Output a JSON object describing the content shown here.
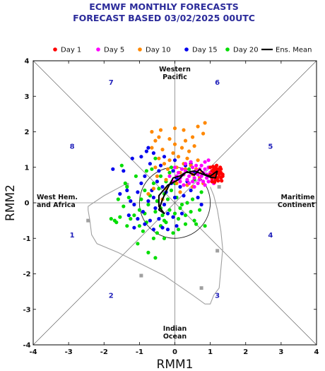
{
  "title_line1": "ECMWF MONTHLY FORECASTS",
  "title_line2": "FORECAST  BASED 03/02/2025 00UTC",
  "chart_data": {
    "type": "scatter",
    "xlabel": "RMM1",
    "ylabel": "RMM2",
    "xlim": [
      -4,
      4
    ],
    "ylim": [
      -4,
      4
    ],
    "xticks": [
      "-4",
      "-3",
      "-2",
      "-1",
      "0",
      "1",
      "2",
      "3",
      "4"
    ],
    "yticks": [
      "-4",
      "-3",
      "-2",
      "-1",
      "0",
      "1",
      "2",
      "3",
      "4"
    ],
    "legend_position": "top",
    "legend": [
      {
        "label": "Day 1",
        "color": "#ff0000",
        "kind": "dot"
      },
      {
        "label": "Day 5",
        "color": "#ff00ff",
        "kind": "dot"
      },
      {
        "label": "Day 10",
        "color": "#ff8800",
        "kind": "dot"
      },
      {
        "label": "Day 15",
        "color": "#0000ee",
        "kind": "dot"
      },
      {
        "label": "Day 20",
        "color": "#00dd00",
        "kind": "dot"
      },
      {
        "label": "Ens. Mean",
        "color": "#000000",
        "kind": "line"
      }
    ],
    "phase_labels": [
      {
        "text": "1",
        "x": -2.9,
        "y": -0.9
      },
      {
        "text": "2",
        "x": -1.8,
        "y": -2.6
      },
      {
        "text": "3",
        "x": 1.2,
        "y": -2.6
      },
      {
        "text": "4",
        "x": 2.7,
        "y": -0.9
      },
      {
        "text": "5",
        "x": 2.7,
        "y": 1.6
      },
      {
        "text": "6",
        "x": 1.2,
        "y": 3.4
      },
      {
        "text": "7",
        "x": -1.8,
        "y": 3.4
      },
      {
        "text": "8",
        "x": -2.9,
        "y": 1.6
      }
    ],
    "region_labels": [
      {
        "lines": [
          "Western",
          "Pacific"
        ],
        "x": 0.0,
        "y": 3.7,
        "anchor": "middle"
      },
      {
        "lines": [
          "Indian",
          "Ocean"
        ],
        "x": 0.0,
        "y": -3.6,
        "anchor": "middle"
      },
      {
        "lines": [
          "West Hem.",
          "and Africa"
        ],
        "x": -3.9,
        "y": 0.1,
        "anchor": "start"
      },
      {
        "lines": [
          "Maritime",
          "Continent"
        ],
        "x": 3.95,
        "y": 0.1,
        "anchor": "end"
      }
    ],
    "unit_circle_radius": 1,
    "ensemble_mean": {
      "x": [
        1.2,
        1.0,
        0.85,
        0.7,
        0.55,
        0.35,
        0.15,
        -0.05,
        -0.2,
        -0.35,
        -0.45,
        -0.3,
        -0.45,
        -0.45,
        -0.2,
        0.1,
        0.3,
        0.55,
        0.8,
        1.0,
        1.15,
        1.2
      ],
      "y": [
        0.9,
        0.75,
        0.8,
        0.95,
        0.78,
        0.88,
        0.76,
        0.7,
        0.42,
        0.1,
        -0.2,
        -0.3,
        -0.1,
        0.2,
        0.5,
        0.65,
        0.85,
        0.9,
        0.8,
        0.72,
        0.7,
        0.9
      ]
    },
    "envelope": {
      "x": [
        1.0,
        1.1,
        1.2,
        1.25,
        1.3,
        1.35,
        1.25,
        1.1,
        1.0,
        0.85,
        0.5,
        -0.3,
        -0.8,
        -1.3,
        -1.6,
        -2.2,
        -2.35,
        -2.4,
        -2.45,
        -2.45,
        -2.0,
        -1.35,
        -1.3
      ],
      "y": [
        0.45,
        0.2,
        -0.2,
        -0.5,
        -0.8,
        -1.3,
        -2.4,
        -2.6,
        -2.85,
        -2.85,
        -2.6,
        -2.05,
        -1.8,
        -1.55,
        -1.4,
        -1.15,
        -0.9,
        -0.5,
        -0.2,
        -0.1,
        0.2,
        0.55,
        0.55
      ]
    },
    "envelope_markers": {
      "x": [
        1.25,
        1.2,
        0.75,
        -0.95,
        -2.45,
        -1.35
      ],
      "y": [
        0.45,
        -1.35,
        -2.4,
        -2.05,
        -0.5,
        0.5
      ]
    },
    "series": [
      {
        "name": "Day 20",
        "color": "#00dd00",
        "points": [
          [
            -1.5,
            1.05
          ],
          [
            -1.4,
            0.55
          ],
          [
            -1.35,
            0.45
          ],
          [
            -1.3,
            0.15
          ],
          [
            -1.25,
            -0.45
          ],
          [
            -1.15,
            -0.35
          ],
          [
            -1.0,
            -0.2
          ],
          [
            -0.95,
            0.1
          ],
          [
            -0.85,
            0.35
          ],
          [
            -0.75,
            -0.05
          ],
          [
            -0.7,
            0.2
          ],
          [
            -0.6,
            0.55
          ],
          [
            -0.55,
            -0.25
          ],
          [
            -0.5,
            0.05
          ],
          [
            -0.45,
            0.4
          ],
          [
            -0.4,
            -0.15
          ],
          [
            -0.35,
            -0.35
          ],
          [
            -0.3,
            0.25
          ],
          [
            -0.25,
            -0.55
          ],
          [
            -0.2,
            0.1
          ],
          [
            -0.15,
            -0.2
          ],
          [
            -0.1,
            0.35
          ],
          [
            0.0,
            -0.3
          ],
          [
            0.05,
            0.15
          ],
          [
            0.1,
            -0.45
          ],
          [
            0.15,
            -0.15
          ],
          [
            0.2,
            -0.05
          ],
          [
            0.3,
            -0.35
          ],
          [
            0.35,
            0.0
          ],
          [
            0.45,
            -0.25
          ],
          [
            0.5,
            0.1
          ],
          [
            0.55,
            -0.5
          ],
          [
            0.6,
            -0.6
          ],
          [
            0.85,
            -0.65
          ],
          [
            -1.8,
            -0.45
          ],
          [
            -1.7,
            -0.5
          ],
          [
            -1.6,
            0.1
          ],
          [
            -1.55,
            -0.4
          ],
          [
            -1.65,
            -0.55
          ],
          [
            -1.0,
            -0.65
          ],
          [
            -0.9,
            -0.8
          ],
          [
            -0.8,
            -0.55
          ],
          [
            -0.6,
            -1.0
          ],
          [
            -0.5,
            -0.85
          ],
          [
            -0.4,
            -0.65
          ],
          [
            -0.3,
            -0.5
          ],
          [
            -0.05,
            -0.85
          ],
          [
            0.1,
            -0.75
          ],
          [
            0.3,
            -0.6
          ],
          [
            -1.05,
            -1.15
          ],
          [
            -0.75,
            -1.4
          ],
          [
            -0.55,
            -1.55
          ],
          [
            -0.3,
            -1.0
          ],
          [
            -0.4,
            0.75
          ],
          [
            -0.25,
            0.6
          ],
          [
            -0.65,
            0.95
          ],
          [
            -0.8,
            0.9
          ],
          [
            0.0,
            0.55
          ],
          [
            0.25,
            0.8
          ],
          [
            0.4,
            0.95
          ],
          [
            -1.1,
            0.75
          ],
          [
            -0.55,
            1.25
          ],
          [
            -0.1,
            1.0
          ],
          [
            0.55,
            0.65
          ],
          [
            -1.35,
            -0.65
          ],
          [
            -1.45,
            -0.1
          ],
          [
            0.7,
            -0.2
          ],
          [
            0.75,
            0.3
          ],
          [
            -0.15,
            0.85
          ],
          [
            -0.85,
            -0.3
          ]
        ]
      },
      {
        "name": "Day 15",
        "color": "#0000ee",
        "points": [
          [
            -1.75,
            0.95
          ],
          [
            -1.45,
            0.9
          ],
          [
            -1.35,
            0.35
          ],
          [
            -1.25,
            0.05
          ],
          [
            -1.15,
            -0.05
          ],
          [
            -1.05,
            0.3
          ],
          [
            -0.95,
            0.55
          ],
          [
            -0.85,
            0.75
          ],
          [
            -0.8,
            1.45
          ],
          [
            -0.75,
            1.55
          ],
          [
            -0.7,
            1.1
          ],
          [
            -0.65,
            0.35
          ],
          [
            -0.6,
            0.15
          ],
          [
            -0.55,
            -0.15
          ],
          [
            -0.5,
            0.6
          ],
          [
            -0.45,
            0.9
          ],
          [
            -0.4,
            1.05
          ],
          [
            -0.35,
            0.45
          ],
          [
            -0.3,
            -0.05
          ],
          [
            -0.25,
            0.3
          ],
          [
            -0.2,
            -0.3
          ],
          [
            -0.1,
            0.55
          ],
          [
            0.0,
            0.15
          ],
          [
            0.05,
            0.7
          ],
          [
            0.15,
            0.45
          ],
          [
            0.25,
            0.2
          ],
          [
            0.35,
            0.6
          ],
          [
            0.45,
            0.35
          ],
          [
            0.55,
            0.85
          ],
          [
            0.65,
            0.15
          ],
          [
            0.75,
            -0.05
          ],
          [
            -1.15,
            -0.7
          ],
          [
            -1.05,
            -0.45
          ],
          [
            -0.9,
            -0.25
          ],
          [
            -0.85,
            -0.6
          ],
          [
            -0.7,
            -0.5
          ],
          [
            -0.6,
            -0.75
          ],
          [
            -0.45,
            -0.45
          ],
          [
            -0.35,
            -0.7
          ],
          [
            -0.2,
            -0.75
          ],
          [
            -0.05,
            -0.4
          ],
          [
            0.05,
            -0.65
          ],
          [
            0.2,
            -0.3
          ],
          [
            -0.95,
            1.3
          ],
          [
            -1.2,
            1.25
          ],
          [
            -0.6,
            1.4
          ],
          [
            -0.3,
            1.3
          ],
          [
            0.0,
            1.2
          ],
          [
            -0.05,
            0.9
          ],
          [
            0.3,
            1.05
          ],
          [
            0.45,
            1.1
          ],
          [
            -1.55,
            0.25
          ],
          [
            -1.3,
            -0.35
          ],
          [
            -0.75,
            0.05
          ]
        ]
      },
      {
        "name": "Day 10",
        "color": "#ff8800",
        "points": [
          [
            -0.65,
            2.0
          ],
          [
            -0.55,
            1.75
          ],
          [
            -0.45,
            1.85
          ],
          [
            -0.35,
            1.5
          ],
          [
            -0.3,
            1.1
          ],
          [
            -0.2,
            0.95
          ],
          [
            -0.15,
            1.2
          ],
          [
            -0.05,
            1.4
          ],
          [
            0.0,
            1.65
          ],
          [
            0.05,
            1.0
          ],
          [
            0.1,
            1.3
          ],
          [
            0.15,
            0.85
          ],
          [
            0.2,
            1.55
          ],
          [
            0.25,
            1.1
          ],
          [
            0.3,
            0.95
          ],
          [
            0.35,
            1.25
          ],
          [
            0.4,
            1.45
          ],
          [
            0.45,
            1.05
          ],
          [
            0.5,
            0.8
          ],
          [
            0.55,
            1.6
          ],
          [
            0.6,
            0.95
          ],
          [
            0.65,
            1.2
          ],
          [
            0.7,
            0.7
          ],
          [
            0.75,
            0.85
          ],
          [
            0.8,
            0.55
          ],
          [
            -0.45,
            1.25
          ],
          [
            -0.55,
            1.0
          ],
          [
            -0.25,
            0.65
          ],
          [
            0.05,
            0.55
          ],
          [
            0.35,
            0.5
          ],
          [
            -0.75,
            0.25
          ],
          [
            -0.6,
            0.4
          ],
          [
            -0.35,
            0.1
          ],
          [
            0.15,
            0.3
          ],
          [
            -0.65,
            1.55
          ],
          [
            0.65,
            2.15
          ],
          [
            0.8,
            1.95
          ],
          [
            0.85,
            2.25
          ],
          [
            0.25,
            2.05
          ],
          [
            0.3,
            1.75
          ],
          [
            -0.15,
            1.8
          ],
          [
            -0.4,
            2.05
          ],
          [
            0.0,
            2.1
          ],
          [
            0.5,
            1.85
          ],
          [
            -0.25,
            0.4
          ],
          [
            0.5,
            0.45
          ],
          [
            -0.5,
            0.75
          ]
        ]
      },
      {
        "name": "Day 5",
        "color": "#ff00ff",
        "points": [
          [
            0.0,
            1.0
          ],
          [
            0.05,
            0.75
          ],
          [
            0.1,
            0.85
          ],
          [
            0.15,
            0.7
          ],
          [
            0.2,
            0.95
          ],
          [
            0.25,
            0.8
          ],
          [
            0.3,
            0.9
          ],
          [
            0.35,
            0.65
          ],
          [
            0.4,
            0.75
          ],
          [
            0.45,
            0.85
          ],
          [
            0.5,
            0.6
          ],
          [
            0.5,
            1.0
          ],
          [
            0.55,
            0.7
          ],
          [
            0.6,
            0.9
          ],
          [
            0.65,
            0.55
          ],
          [
            0.65,
            0.8
          ],
          [
            0.7,
            0.95
          ],
          [
            0.7,
            0.65
          ],
          [
            0.75,
            0.75
          ],
          [
            0.75,
            1.05
          ],
          [
            0.8,
            0.6
          ],
          [
            0.8,
            0.85
          ],
          [
            0.85,
            0.95
          ],
          [
            0.85,
            0.5
          ],
          [
            0.9,
            0.7
          ],
          [
            0.9,
            0.8
          ],
          [
            0.95,
            0.6
          ],
          [
            0.95,
            1.0
          ],
          [
            1.0,
            0.75
          ],
          [
            1.0,
            0.85
          ],
          [
            1.05,
            0.65
          ],
          [
            1.05,
            0.9
          ],
          [
            1.1,
            0.55
          ],
          [
            1.1,
            0.8
          ],
          [
            0.3,
            1.1
          ],
          [
            0.45,
            1.15
          ],
          [
            0.55,
            0.45
          ],
          [
            0.25,
            0.5
          ],
          [
            0.15,
            0.6
          ],
          [
            0.4,
            0.55
          ],
          [
            -0.15,
            0.75
          ],
          [
            -0.05,
            0.6
          ],
          [
            0.6,
            1.05
          ],
          [
            0.85,
            1.15
          ],
          [
            0.95,
            1.2
          ]
        ]
      },
      {
        "name": "Day 1",
        "color": "#ff0000",
        "points": [
          [
            1.0,
            0.8
          ],
          [
            1.05,
            0.7
          ],
          [
            1.05,
            0.9
          ],
          [
            1.1,
            0.75
          ],
          [
            1.1,
            0.85
          ],
          [
            1.1,
            0.95
          ],
          [
            1.15,
            0.65
          ],
          [
            1.15,
            0.8
          ],
          [
            1.15,
            0.9
          ],
          [
            1.15,
            1.0
          ],
          [
            1.2,
            0.7
          ],
          [
            1.2,
            0.85
          ],
          [
            1.2,
            0.95
          ],
          [
            1.25,
            0.75
          ],
          [
            1.25,
            0.8
          ],
          [
            1.25,
            0.9
          ],
          [
            1.3,
            0.7
          ],
          [
            1.3,
            0.85
          ],
          [
            1.3,
            0.95
          ],
          [
            1.35,
            0.8
          ],
          [
            1.35,
            0.75
          ],
          [
            1.05,
            0.6
          ],
          [
            1.12,
            0.58
          ],
          [
            1.0,
            1.0
          ],
          [
            1.18,
            1.05
          ],
          [
            1.22,
            0.62
          ],
          [
            1.28,
            1.0
          ],
          [
            1.08,
            1.02
          ],
          [
            1.32,
            0.62
          ]
        ]
      }
    ]
  }
}
